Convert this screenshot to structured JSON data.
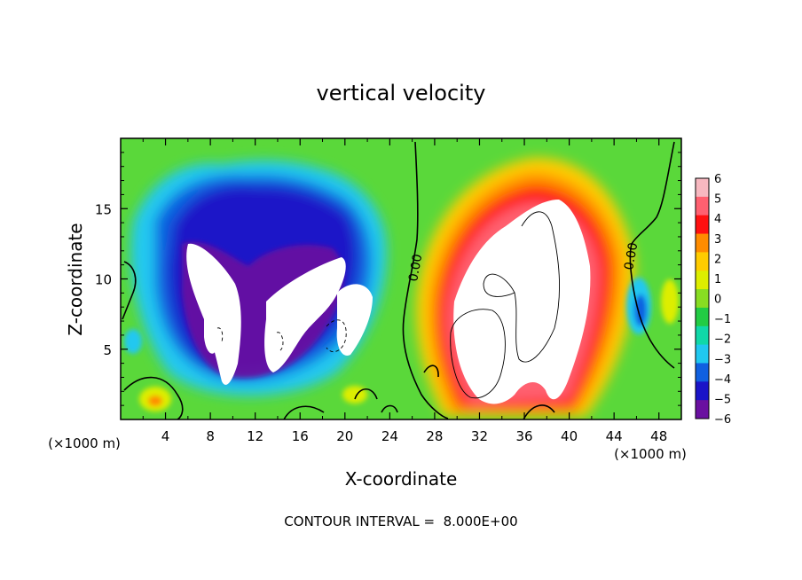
{
  "chart_data": {
    "type": "heatmap",
    "title": "vertical velocity",
    "xlabel": "X-coordinate",
    "ylabel": "Z-coordinate",
    "x_unit": "(×1000 m)",
    "x_unit_right": "(×1000 m)",
    "xlim": [
      0,
      50
    ],
    "ylim": [
      0,
      20
    ],
    "x_ticks": [
      "4",
      "8",
      "12",
      "16",
      "20",
      "24",
      "28",
      "32",
      "36",
      "40",
      "44",
      "48"
    ],
    "y_ticks": [
      "5",
      "10",
      "15"
    ],
    "colorbar": {
      "range": [
        -6,
        6
      ],
      "labels": [
        "6",
        "5",
        "4",
        "3",
        "2",
        "1",
        "0",
        "−1",
        "−2",
        "−3",
        "−4",
        "−5",
        "−6"
      ],
      "colors": [
        "#f7b8c0",
        "#ff6070",
        "#ff1010",
        "#ff8c00",
        "#ffcc00",
        "#ddee00",
        "#88dd22",
        "#22cc44",
        "#10d8a8",
        "#20c8f0",
        "#1060e0",
        "#1a14c8",
        "#6a10a0"
      ],
      "above_range_color": "#ffffff"
    },
    "contour_labels": [
      "0.00",
      "0.00"
    ],
    "contour_interval_text": "CONTOUR INTERVAL =  8.000E+00",
    "features": [
      {
        "kind": "downdraft",
        "x_center": 13,
        "z_center": 10,
        "min_value": -6
      },
      {
        "kind": "updraft",
        "x_center": 36,
        "z_center": 9,
        "max_value": 6
      }
    ]
  }
}
